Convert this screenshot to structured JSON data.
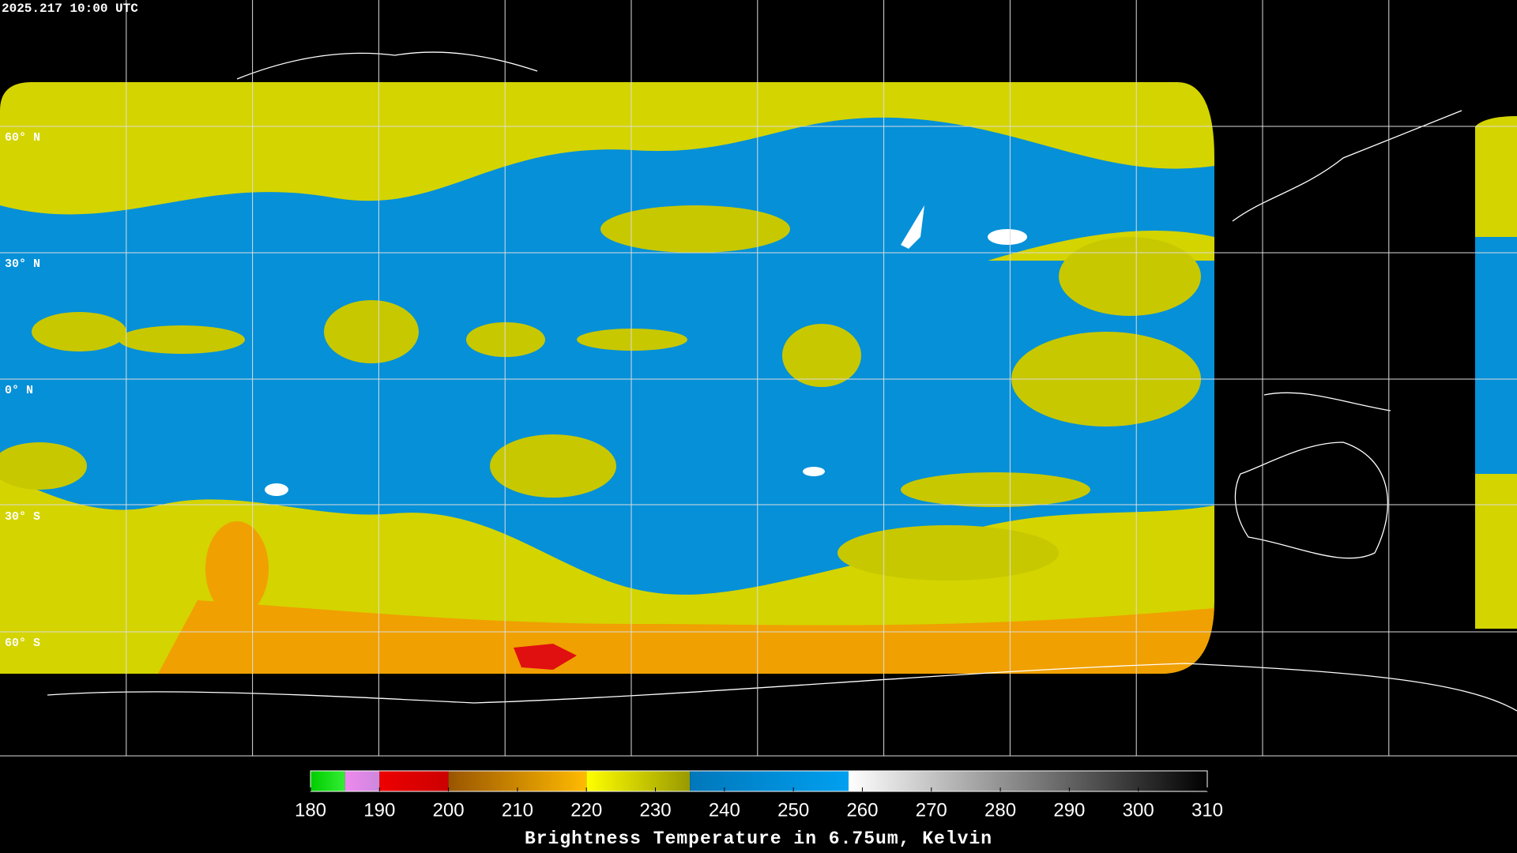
{
  "timestamp": "2025.217 10:00 UTC",
  "latitude_labels": [
    "60° N",
    "30° N",
    "0° N",
    "30° S",
    "60° S"
  ],
  "colorbar": {
    "title": "Brightness Temperature in 6.75um, Kelvin",
    "range": [
      180,
      310
    ],
    "ticks": [
      180,
      190,
      200,
      210,
      220,
      230,
      240,
      250,
      260,
      270,
      280,
      290,
      300,
      310
    ],
    "segments": [
      {
        "from": 180,
        "to": 185,
        "colors": [
          "#00cc00",
          "#33ee33"
        ]
      },
      {
        "from": 185,
        "to": 190,
        "colors": [
          "#ee88ee",
          "#cc88dd"
        ]
      },
      {
        "from": 190,
        "to": 200,
        "colors": [
          "#ee0000",
          "#cc0000"
        ]
      },
      {
        "from": 200,
        "to": 220,
        "colors": [
          "#995500",
          "#ffbb00"
        ]
      },
      {
        "from": 220,
        "to": 235,
        "colors": [
          "#ffff00",
          "#999900"
        ]
      },
      {
        "from": 235,
        "to": 258,
        "colors": [
          "#0077bb",
          "#00a0f0"
        ]
      },
      {
        "from": 258,
        "to": 310,
        "colors": [
          "#ffffff",
          "#000000"
        ]
      }
    ]
  }
}
